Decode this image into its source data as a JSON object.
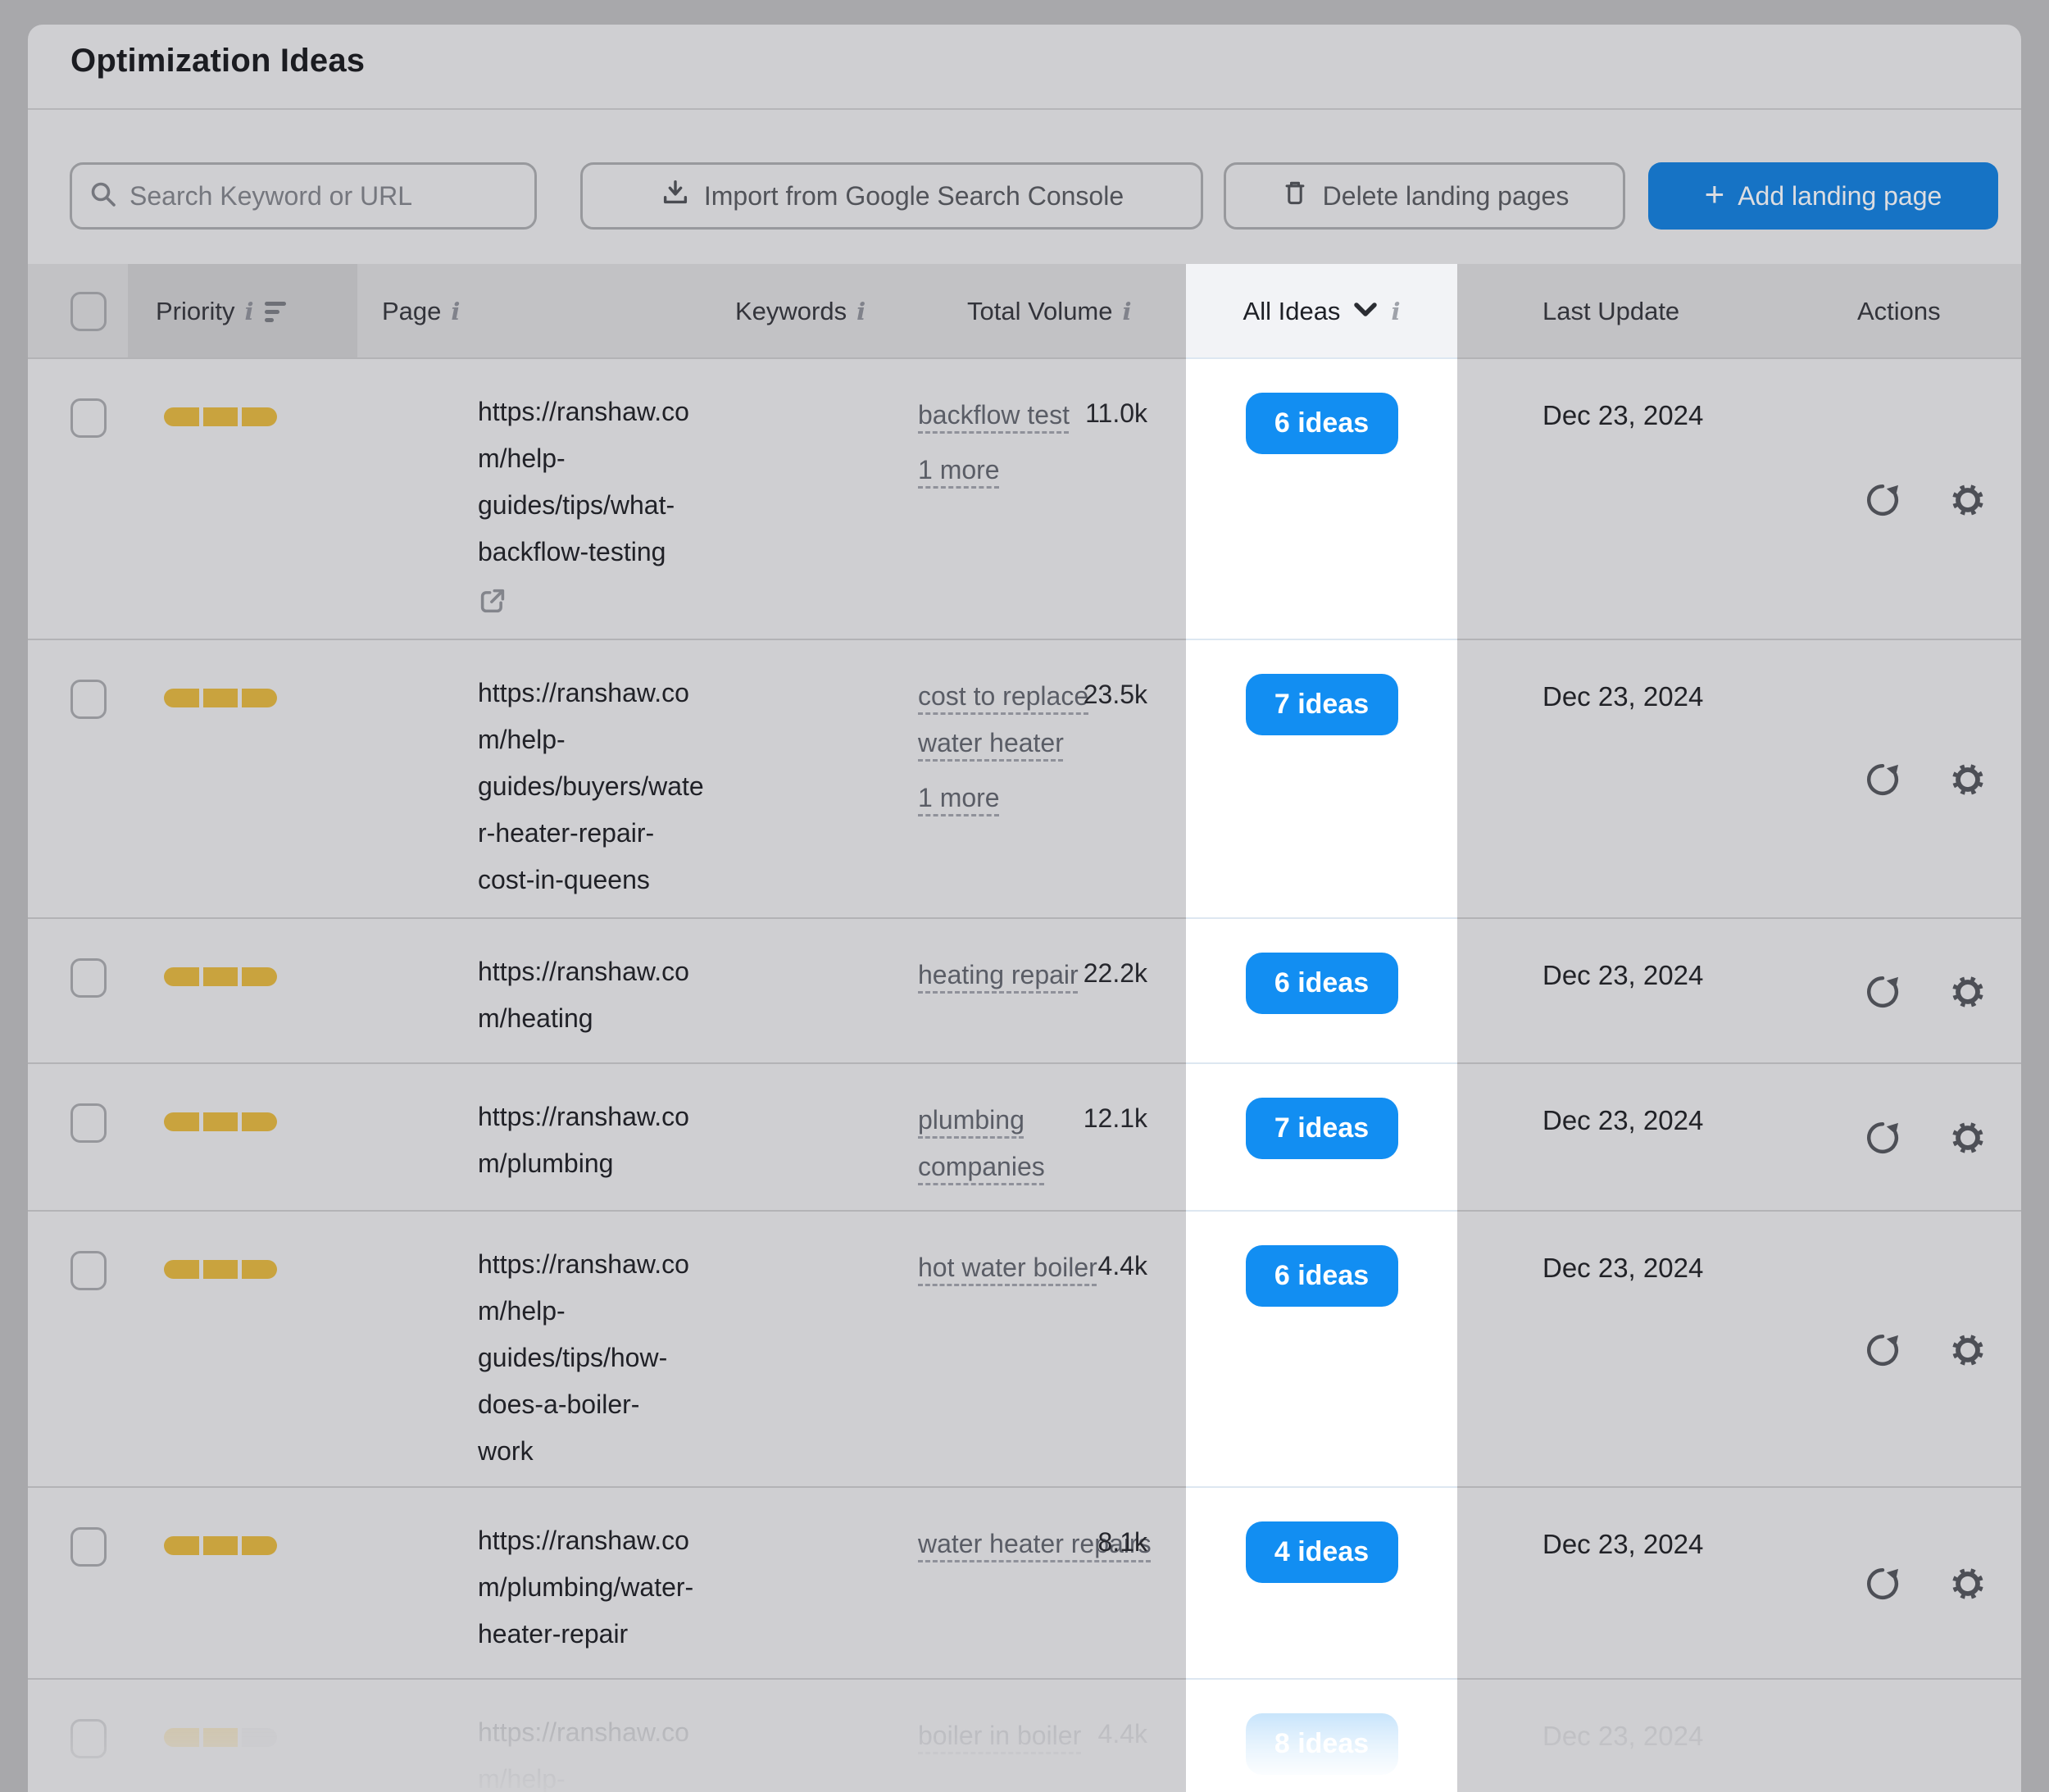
{
  "title": "Optimization Ideas",
  "toolbar": {
    "search_placeholder": "Search Keyword or URL",
    "import_label": "Import from Google Search Console",
    "delete_label": "Delete landing pages",
    "add_label": "Add landing page"
  },
  "table": {
    "headers": {
      "priority": "Priority",
      "page": "Page",
      "keywords": "Keywords",
      "total_volume": "Total Volume",
      "all_ideas": "All Ideas",
      "last_update": "Last Update",
      "actions": "Actions"
    },
    "rows": [
      {
        "priority_level": 3,
        "url_lines": [
          "https://ranshaw.co",
          "m/help-",
          "guides/tips/what-",
          "backflow-testing"
        ],
        "ext_icon_own_line": true,
        "keywords": [
          [
            "backflow test"
          ]
        ],
        "more_label": "1 more",
        "volume": "11.0k",
        "ideas_label": "6 ideas",
        "last_update": "Dec 23, 2024",
        "faded": false
      },
      {
        "priority_level": 3,
        "url_lines": [
          "https://ranshaw.co",
          "m/help-",
          "guides/buyers/wate",
          "r-heater-repair-",
          "cost-in-queens"
        ],
        "keywords": [
          [
            "cost to replace",
            "water heater"
          ]
        ],
        "more_label": "1 more",
        "volume": "23.5k",
        "ideas_label": "7 ideas",
        "last_update": "Dec 23, 2024",
        "faded": false
      },
      {
        "priority_level": 3,
        "url_lines": [
          "https://ranshaw.co",
          "m/heating"
        ],
        "keywords": [
          [
            "heating repair"
          ]
        ],
        "volume": "22.2k",
        "ideas_label": "6 ideas",
        "last_update": "Dec 23, 2024",
        "faded": false
      },
      {
        "priority_level": 3,
        "url_lines": [
          "https://ranshaw.co",
          "m/plumbing"
        ],
        "keywords": [
          [
            "plumbing",
            "companies"
          ]
        ],
        "volume": "12.1k",
        "ideas_label": "7 ideas",
        "last_update": "Dec 23, 2024",
        "faded": false
      },
      {
        "priority_level": 3,
        "url_lines": [
          "https://ranshaw.co",
          "m/help-",
          "guides/tips/how-",
          "does-a-boiler-",
          "work"
        ],
        "keywords": [
          [
            "hot water boiler"
          ]
        ],
        "volume": "4.4k",
        "ideas_label": "6 ideas",
        "last_update": "Dec 23, 2024",
        "faded": false
      },
      {
        "priority_level": 3,
        "url_lines": [
          "https://ranshaw.co",
          "m/plumbing/water-",
          "heater-repair"
        ],
        "keywords": [
          [
            "water heater repairs"
          ]
        ],
        "volume": "8.1k",
        "ideas_label": "4 ideas",
        "last_update": "Dec 23, 2024",
        "faded": false
      },
      {
        "priority_level": 2,
        "url_lines": [
          "https://ranshaw.co",
          "m/help-"
        ],
        "no_ext_icon": true,
        "keywords": [
          [
            "boiler in boiler"
          ]
        ],
        "volume": "4.4k",
        "ideas_label": "8 ideas",
        "last_update": "Dec 23, 2024",
        "faded": true,
        "no_actions": true
      }
    ]
  },
  "colors": {
    "spotlight_blue": "#128ef2",
    "dimmed_blue": "#1673c5",
    "priority_yellow": "#c9a33e"
  }
}
